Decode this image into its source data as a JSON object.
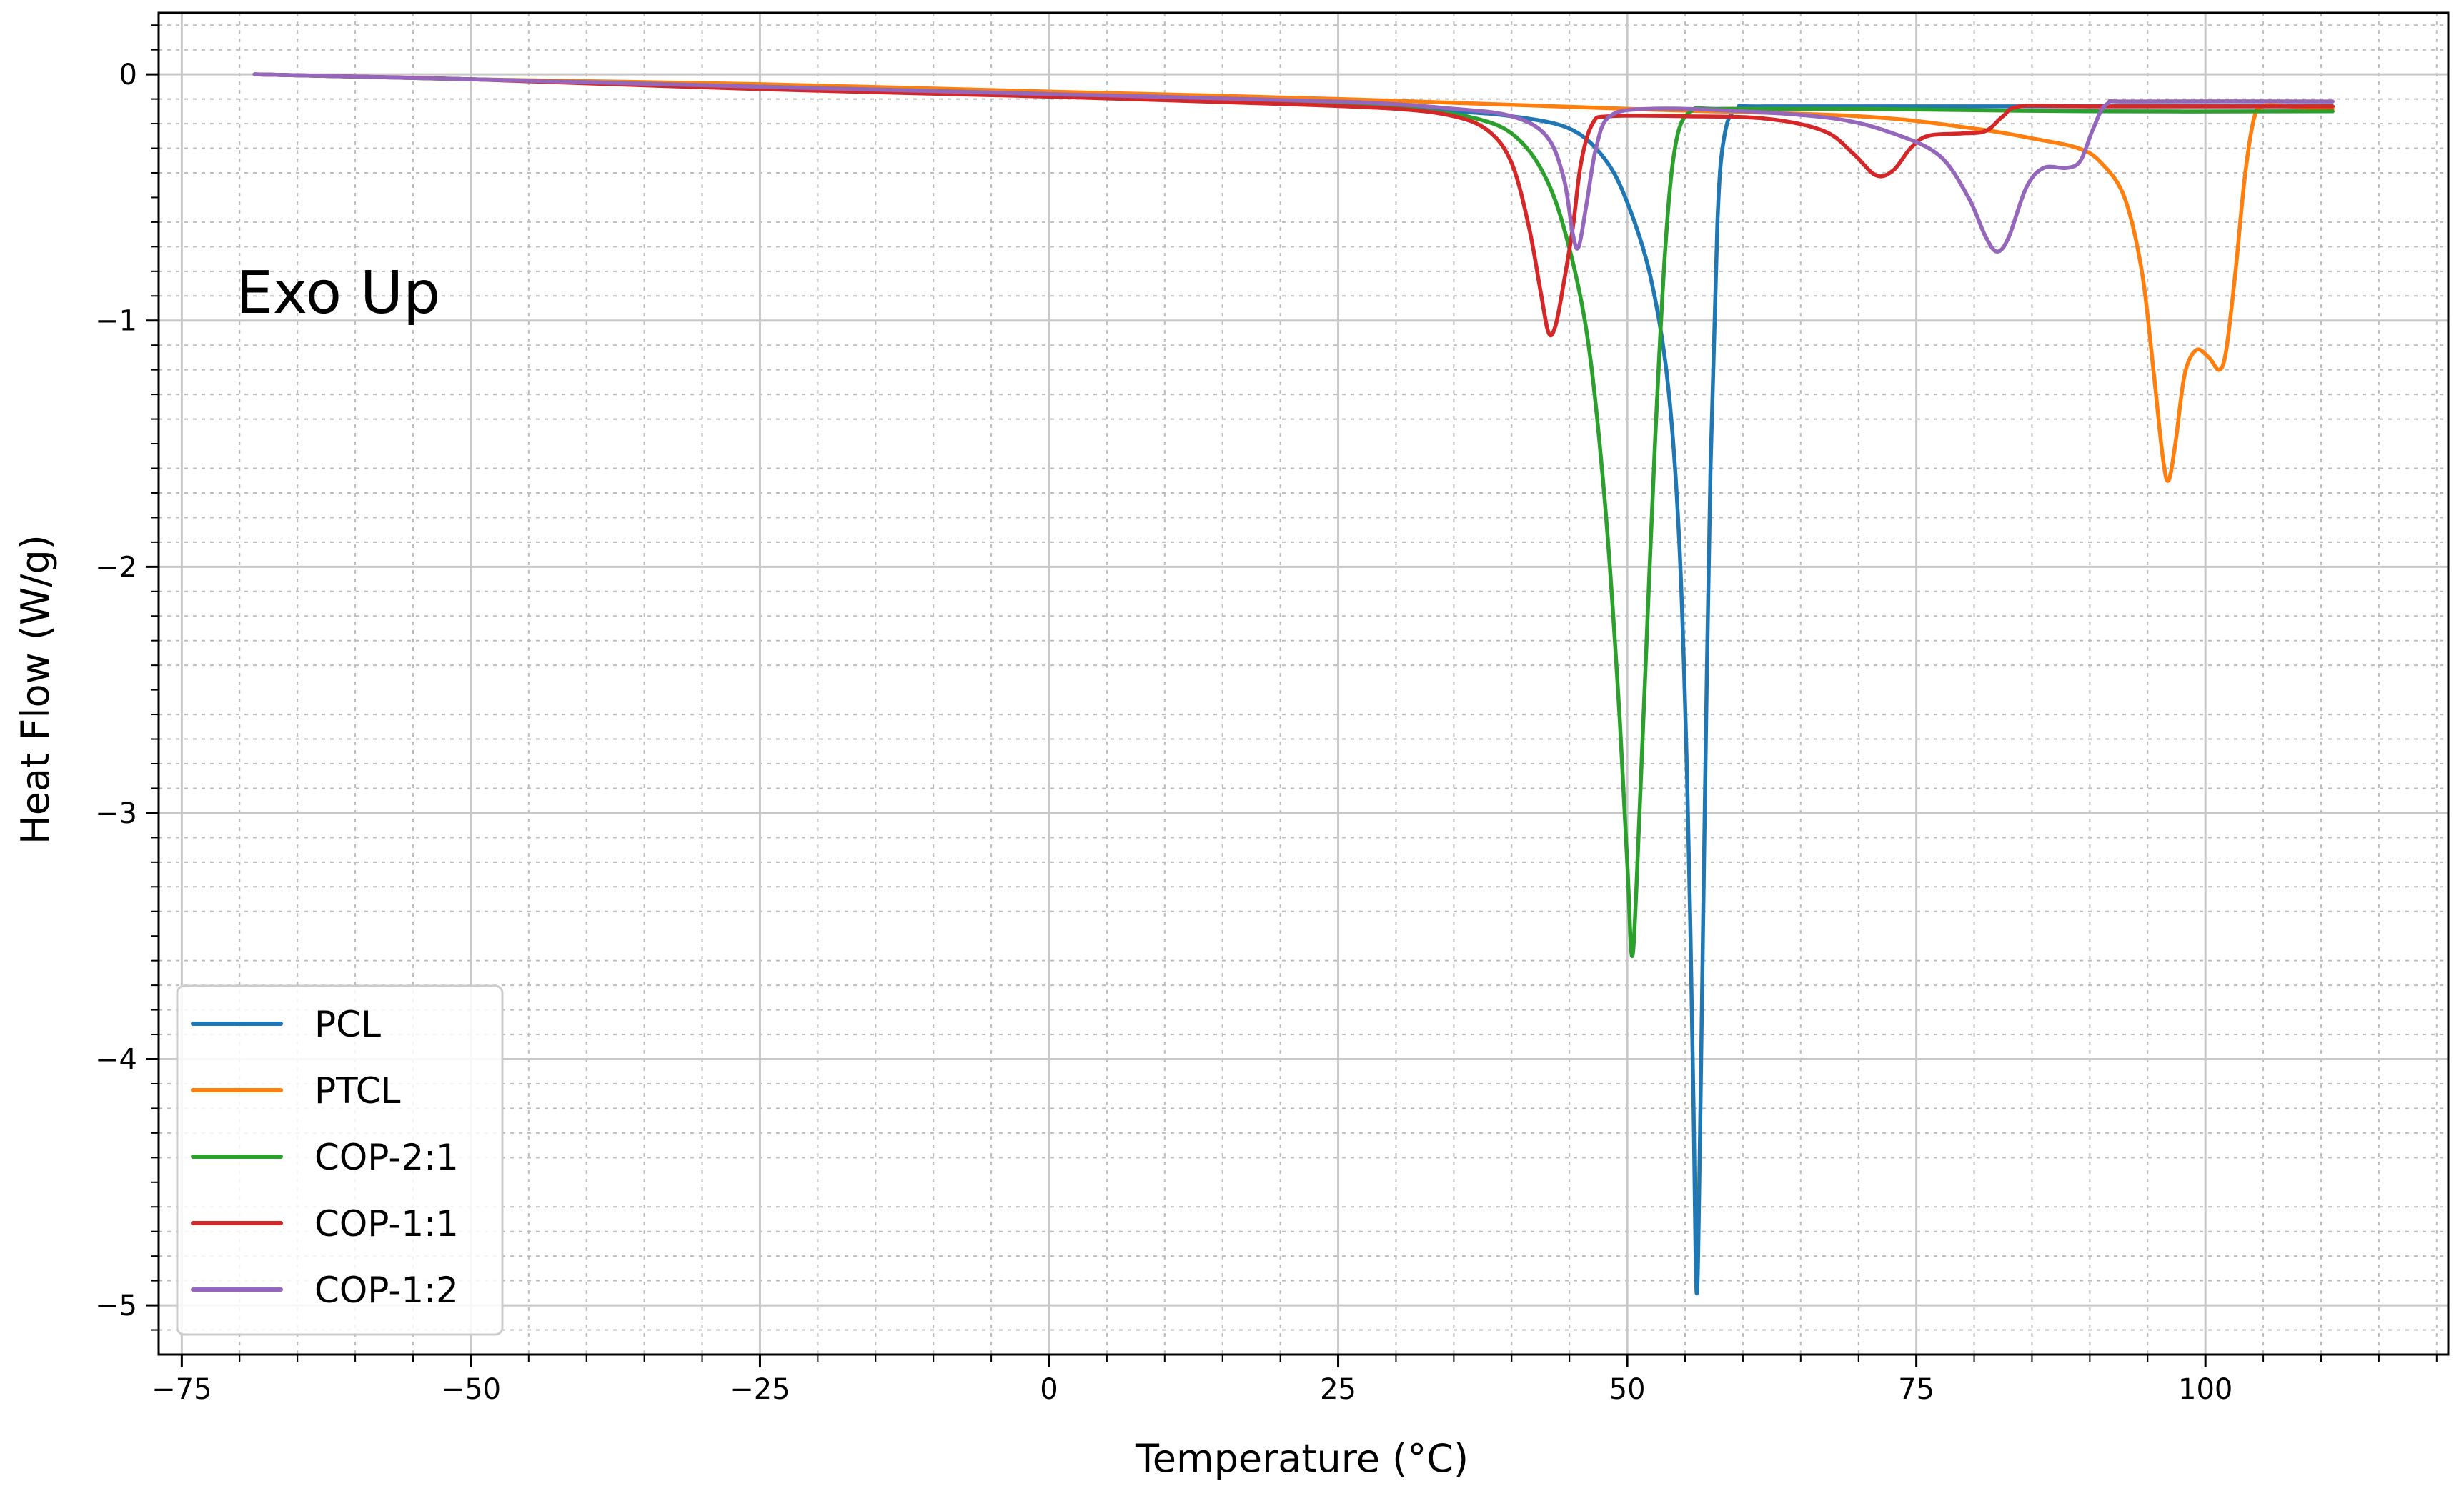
{
  "chart_data": {
    "type": "line",
    "title": "",
    "annotation": "Exo Up",
    "xlabel": "Temperature (°C)",
    "ylabel": "Heat Flow (W/g)",
    "xlim": [
      -77,
      121
    ],
    "ylim": [
      -5.2,
      0.25
    ],
    "xticks": [
      -75,
      -50,
      -25,
      0,
      25,
      50,
      75,
      100
    ],
    "xtick_labels": [
      "−75",
      "−50",
      "−25",
      "0",
      "25",
      "50",
      "75",
      "100"
    ],
    "yticks": [
      0,
      -1,
      -2,
      -3,
      -4,
      -5
    ],
    "ytick_labels": [
      "0",
      "−1",
      "−2",
      "−3",
      "−4",
      "−5"
    ],
    "grid": true,
    "minor_grid": true,
    "legend_position": "lower-left",
    "series": [
      {
        "name": "PCL",
        "color": "#1f77b4",
        "points": [
          [
            -68.7,
            0
          ],
          [
            -50,
            -0.02
          ],
          [
            -25,
            -0.05
          ],
          [
            0,
            -0.08
          ],
          [
            25,
            -0.12
          ],
          [
            35,
            -0.15
          ],
          [
            40,
            -0.17
          ],
          [
            45,
            -0.22
          ],
          [
            48,
            -0.34
          ],
          [
            50,
            -0.52
          ],
          [
            52,
            -0.82
          ],
          [
            53.5,
            -1.25
          ],
          [
            54.5,
            -1.9
          ],
          [
            55.2,
            -2.9
          ],
          [
            55.7,
            -4.1
          ],
          [
            56.0,
            -4.95
          ],
          [
            56.3,
            -4.3
          ],
          [
            56.7,
            -3.0
          ],
          [
            57.2,
            -1.6
          ],
          [
            57.8,
            -0.6
          ],
          [
            58.4,
            -0.25
          ],
          [
            59.5,
            -0.14
          ],
          [
            62,
            -0.13
          ],
          [
            80,
            -0.13
          ],
          [
            100,
            -0.13
          ],
          [
            111,
            -0.13
          ]
        ]
      },
      {
        "name": "PTCL",
        "color": "#ff7f0e",
        "points": [
          [
            -68.7,
            0
          ],
          [
            -50,
            -0.02
          ],
          [
            -25,
            -0.04
          ],
          [
            0,
            -0.07
          ],
          [
            25,
            -0.1
          ],
          [
            50,
            -0.14
          ],
          [
            70,
            -0.17
          ],
          [
            80,
            -0.22
          ],
          [
            85,
            -0.26
          ],
          [
            89,
            -0.3
          ],
          [
            91,
            -0.36
          ],
          [
            93,
            -0.5
          ],
          [
            94.5,
            -0.8
          ],
          [
            95.5,
            -1.2
          ],
          [
            96.3,
            -1.55
          ],
          [
            96.8,
            -1.65
          ],
          [
            97.4,
            -1.5
          ],
          [
            98.2,
            -1.22
          ],
          [
            99.2,
            -1.12
          ],
          [
            100.3,
            -1.15
          ],
          [
            101.2,
            -1.2
          ],
          [
            101.8,
            -1.12
          ],
          [
            102.6,
            -0.8
          ],
          [
            103.4,
            -0.42
          ],
          [
            104.2,
            -0.18
          ],
          [
            105,
            -0.13
          ],
          [
            107,
            -0.13
          ],
          [
            111,
            -0.14
          ]
        ]
      },
      {
        "name": "COP-2:1",
        "color": "#2ca02c",
        "points": [
          [
            -68.7,
            0
          ],
          [
            -50,
            -0.02
          ],
          [
            -25,
            -0.05
          ],
          [
            0,
            -0.08
          ],
          [
            25,
            -0.12
          ],
          [
            33,
            -0.15
          ],
          [
            37,
            -0.18
          ],
          [
            40,
            -0.24
          ],
          [
            42.5,
            -0.38
          ],
          [
            44.5,
            -0.62
          ],
          [
            46.5,
            -1.05
          ],
          [
            48,
            -1.7
          ],
          [
            49.2,
            -2.5
          ],
          [
            50.0,
            -3.2
          ],
          [
            50.4,
            -3.58
          ],
          [
            50.8,
            -3.3
          ],
          [
            51.5,
            -2.5
          ],
          [
            52.4,
            -1.5
          ],
          [
            53.3,
            -0.7
          ],
          [
            54.2,
            -0.28
          ],
          [
            55.5,
            -0.15
          ],
          [
            58,
            -0.14
          ],
          [
            70,
            -0.14
          ],
          [
            90,
            -0.15
          ],
          [
            111,
            -0.15
          ]
        ]
      },
      {
        "name": "COP-1:1",
        "color": "#d62728",
        "points": [
          [
            -68.7,
            0
          ],
          [
            -50,
            -0.02
          ],
          [
            -25,
            -0.06
          ],
          [
            0,
            -0.09
          ],
          [
            20,
            -0.12
          ],
          [
            30,
            -0.14
          ],
          [
            35,
            -0.17
          ],
          [
            38,
            -0.23
          ],
          [
            40,
            -0.36
          ],
          [
            41.5,
            -0.62
          ],
          [
            42.5,
            -0.88
          ],
          [
            43.2,
            -1.05
          ],
          [
            43.8,
            -1.02
          ],
          [
            44.5,
            -0.85
          ],
          [
            45.3,
            -0.62
          ],
          [
            46,
            -0.36
          ],
          [
            47,
            -0.2
          ],
          [
            48.5,
            -0.17
          ],
          [
            55,
            -0.17
          ],
          [
            62,
            -0.18
          ],
          [
            67,
            -0.23
          ],
          [
            69.5,
            -0.32
          ],
          [
            71.5,
            -0.41
          ],
          [
            73,
            -0.39
          ],
          [
            74.5,
            -0.3
          ],
          [
            76,
            -0.25
          ],
          [
            79,
            -0.24
          ],
          [
            81,
            -0.23
          ],
          [
            82.5,
            -0.17
          ],
          [
            84,
            -0.13
          ],
          [
            90,
            -0.13
          ],
          [
            111,
            -0.13
          ]
        ]
      },
      {
        "name": "COP-1:2",
        "color": "#9467bd",
        "points": [
          [
            -68.7,
            0
          ],
          [
            -50,
            -0.02
          ],
          [
            -25,
            -0.05
          ],
          [
            0,
            -0.08
          ],
          [
            25,
            -0.11
          ],
          [
            35,
            -0.14
          ],
          [
            40,
            -0.17
          ],
          [
            43,
            -0.25
          ],
          [
            44.5,
            -0.42
          ],
          [
            45.3,
            -0.65
          ],
          [
            45.8,
            -0.7
          ],
          [
            46.5,
            -0.52
          ],
          [
            47.3,
            -0.3
          ],
          [
            48.5,
            -0.17
          ],
          [
            52,
            -0.14
          ],
          [
            60,
            -0.15
          ],
          [
            68,
            -0.18
          ],
          [
            73,
            -0.24
          ],
          [
            77,
            -0.33
          ],
          [
            79.5,
            -0.5
          ],
          [
            81,
            -0.66
          ],
          [
            82,
            -0.72
          ],
          [
            83,
            -0.66
          ],
          [
            84.5,
            -0.46
          ],
          [
            86,
            -0.38
          ],
          [
            88,
            -0.38
          ],
          [
            89.2,
            -0.35
          ],
          [
            90.3,
            -0.22
          ],
          [
            91.5,
            -0.12
          ],
          [
            94,
            -0.11
          ],
          [
            111,
            -0.11
          ]
        ]
      }
    ]
  }
}
